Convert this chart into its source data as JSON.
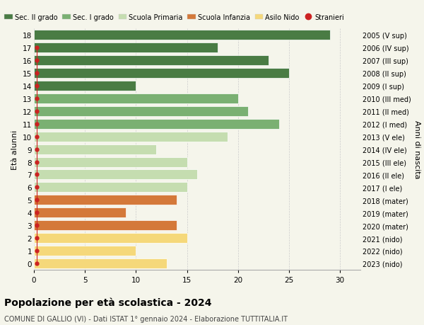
{
  "ages": [
    18,
    17,
    16,
    15,
    14,
    13,
    12,
    11,
    10,
    9,
    8,
    7,
    6,
    5,
    4,
    3,
    2,
    1,
    0
  ],
  "years": [
    "2005 (V sup)",
    "2006 (IV sup)",
    "2007 (III sup)",
    "2008 (II sup)",
    "2009 (I sup)",
    "2010 (III med)",
    "2011 (II med)",
    "2012 (I med)",
    "2013 (V ele)",
    "2014 (IV ele)",
    "2015 (III ele)",
    "2016 (II ele)",
    "2017 (I ele)",
    "2018 (mater)",
    "2019 (mater)",
    "2020 (mater)",
    "2021 (nido)",
    "2022 (nido)",
    "2023 (nido)"
  ],
  "values": [
    29,
    18,
    23,
    25,
    10,
    20,
    21,
    24,
    19,
    12,
    15,
    16,
    15,
    14,
    9,
    14,
    15,
    10,
    13
  ],
  "stranieri_ages": [
    17,
    16,
    15,
    14,
    13,
    12,
    11,
    10,
    9,
    8,
    7,
    6,
    5,
    4,
    3,
    2,
    1,
    0
  ],
  "bar_colors": {
    "sec2": "#4a7c44",
    "sec1": "#7ab072",
    "primaria": "#c5ddb0",
    "infanzia": "#d4793a",
    "nido": "#f5d87a"
  },
  "stranieri_color": "#cc2222",
  "stranieri_line_color": "#cc2222",
  "bg_color": "#f5f5eb",
  "grid_color": "#cccccc",
  "title": "Popolazione per età scolastica - 2024",
  "subtitle": "COMUNE DI GALLIO (VI) - Dati ISTAT 1° gennaio 2024 - Elaborazione TUTTITALIA.IT",
  "ylabel_left": "Età alunni",
  "ylabel_right": "Anni di nascita",
  "xlim": [
    0,
    32
  ],
  "xticks": [
    0,
    5,
    10,
    15,
    20,
    25,
    30
  ],
  "legend_labels": [
    "Sec. II grado",
    "Sec. I grado",
    "Scuola Primaria",
    "Scuola Infanzia",
    "Asilo Nido",
    "Stranieri"
  ],
  "legend_colors": [
    "#4a7c44",
    "#7ab072",
    "#c5ddb0",
    "#d4793a",
    "#f5d87a",
    "#cc2222"
  ]
}
